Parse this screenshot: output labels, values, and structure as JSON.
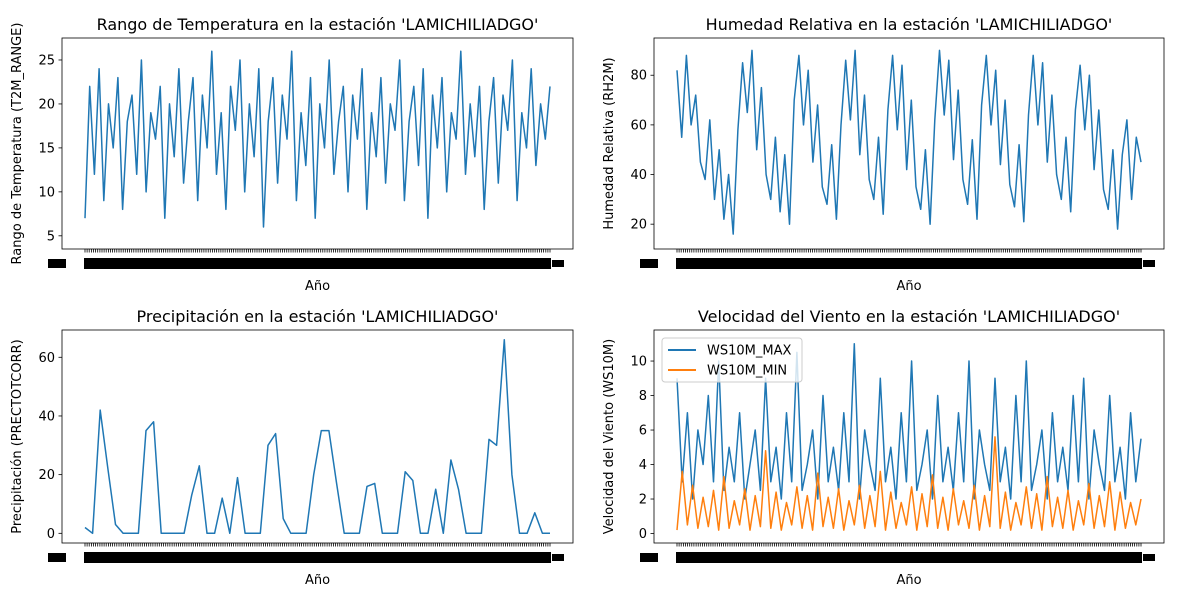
{
  "chart_data": [
    {
      "type": "line",
      "title": "Rango de Temperatura en la estación 'LAMICHILIADGO'",
      "xlabel": "Año",
      "ylabel": "Rango de Temperatura (T2M_RANGE)",
      "ylim": [
        3.5,
        27.5
      ],
      "yticks": [
        5,
        10,
        15,
        20,
        25
      ],
      "grid": false,
      "series": [
        {
          "color": "#1f77b4",
          "values": [
            7,
            22,
            12,
            24,
            9,
            20,
            15,
            23,
            8,
            18,
            21,
            12,
            25,
            10,
            19,
            16,
            22,
            7,
            20,
            14,
            24,
            11,
            18,
            23,
            9,
            21,
            15,
            26,
            12,
            19,
            8,
            22,
            17,
            25,
            10,
            20,
            14,
            24,
            6,
            18,
            23,
            11,
            21,
            16,
            26,
            9,
            19,
            13,
            23,
            7,
            20,
            15,
            25,
            12,
            18,
            22,
            10,
            21,
            16,
            24,
            8,
            19,
            14,
            23,
            11,
            20,
            17,
            25,
            9,
            18,
            22,
            13,
            24,
            7,
            21,
            15,
            23,
            10,
            19,
            16,
            26,
            12,
            20,
            14,
            22,
            8,
            18,
            23,
            11,
            21,
            17,
            25,
            9,
            19,
            15,
            24,
            13,
            20,
            16,
            22
          ]
        }
      ]
    },
    {
      "type": "line",
      "title": "Humedad Relativa en la estación 'LAMICHILIADGO'",
      "xlabel": "Año",
      "ylabel": "Humedad Relativa (RH2M)",
      "ylim": [
        10,
        95
      ],
      "yticks": [
        20,
        40,
        60,
        80
      ],
      "grid": false,
      "series": [
        {
          "color": "#1f77b4",
          "values": [
            82,
            55,
            88,
            60,
            72,
            45,
            38,
            62,
            30,
            50,
            22,
            40,
            16,
            58,
            85,
            65,
            90,
            50,
            75,
            40,
            30,
            55,
            25,
            48,
            20,
            70,
            88,
            60,
            82,
            45,
            68,
            35,
            28,
            52,
            22,
            60,
            86,
            62,
            90,
            48,
            72,
            38,
            30,
            55,
            24,
            66,
            88,
            58,
            84,
            42,
            70,
            35,
            26,
            50,
            20,
            62,
            90,
            64,
            86,
            46,
            74,
            38,
            28,
            54,
            22,
            68,
            88,
            60,
            82,
            44,
            70,
            36,
            27,
            52,
            21,
            64,
            88,
            60,
            85,
            45,
            72,
            40,
            30,
            55,
            25,
            66,
            84,
            58,
            80,
            42,
            66,
            34,
            26,
            50,
            18,
            48,
            62,
            30,
            55,
            45
          ]
        }
      ]
    },
    {
      "type": "line",
      "title": "Precipitación en la estación 'LAMICHILIADGO'",
      "xlabel": "Año",
      "ylabel": "Precipitación (PRECTOTCORR)",
      "ylim": [
        -3.3,
        69.3
      ],
      "yticks": [
        0,
        20,
        40,
        60
      ],
      "grid": false,
      "series": [
        {
          "color": "#1f77b4",
          "values": [
            2,
            0,
            42,
            22,
            3,
            0,
            0,
            0,
            35,
            38,
            0,
            0,
            0,
            0,
            13,
            23,
            0,
            0,
            12,
            0,
            19,
            0,
            0,
            0,
            30,
            34,
            5,
            0,
            0,
            0,
            20,
            35,
            35,
            17,
            0,
            0,
            0,
            16,
            17,
            0,
            0,
            0,
            21,
            18,
            0,
            0,
            15,
            0,
            25,
            15,
            0,
            0,
            0,
            32,
            30,
            66,
            20,
            0,
            0,
            7,
            0,
            0
          ]
        }
      ]
    },
    {
      "type": "line",
      "title": "Velocidad del Viento en la estación 'LAMICHILIADGO'",
      "xlabel": "Año",
      "ylabel": "Velocidad del Viento (WS10M)",
      "ylim": [
        -0.55,
        11.8
      ],
      "yticks": [
        0,
        2,
        4,
        6,
        8,
        10
      ],
      "grid": false,
      "legend_position": "upper-left",
      "series": [
        {
          "name": "WS10M_MAX",
          "color": "#1f77b4",
          "values": [
            9,
            3,
            7,
            2,
            6,
            4,
            8,
            3,
            10,
            2.5,
            5,
            3,
            7,
            2,
            4,
            6,
            2.5,
            9,
            3,
            5,
            2,
            7,
            3,
            10.5,
            2.5,
            4,
            6,
            2,
            8,
            3,
            5,
            2.5,
            7,
            3,
            11,
            2,
            6,
            4,
            2.5,
            9,
            3,
            5,
            2,
            7,
            3,
            10,
            2.5,
            4,
            6,
            2,
            8,
            3,
            5,
            2.5,
            7,
            3,
            10,
            2,
            6,
            4,
            2.5,
            9,
            3,
            5,
            2,
            8,
            3,
            10,
            2.5,
            4,
            6,
            2,
            7,
            3,
            5,
            2.5,
            8,
            3,
            9,
            2,
            6,
            4,
            2.5,
            8,
            3,
            5,
            2,
            7,
            3,
            5.5
          ]
        },
        {
          "name": "WS10M_MIN",
          "color": "#ff7f0e",
          "values": [
            0.2,
            3.6,
            0.5,
            2.8,
            0.3,
            2.1,
            0.4,
            2.5,
            0.2,
            3.3,
            0.3,
            1.9,
            0.5,
            2.6,
            0.2,
            2.2,
            0.4,
            4.8,
            0.3,
            2.4,
            0.2,
            1.8,
            0.5,
            2.7,
            0.3,
            2.2,
            0.2,
            3.5,
            0.4,
            2.1,
            0.3,
            2.6,
            0.2,
            1.9,
            0.5,
            2.8,
            0.3,
            2.2,
            0.4,
            3.6,
            0.2,
            2.4,
            0.3,
            1.8,
            0.5,
            2.7,
            0.2,
            2.3,
            0.4,
            3.4,
            0.3,
            2.1,
            0.2,
            2.6,
            0.5,
            1.9,
            0.3,
            2.8,
            0.2,
            2.2,
            0.4,
            5.6,
            0.3,
            2.4,
            0.2,
            1.8,
            0.5,
            2.7,
            0.3,
            2.3,
            0.2,
            3.3,
            0.4,
            2.1,
            0.3,
            2.5,
            0.2,
            1.9,
            0.5,
            2.9,
            0.3,
            2.2,
            0.4,
            3.0,
            0.2,
            2.4,
            0.3,
            1.8,
            0.5,
            2.0
          ]
        }
      ]
    }
  ]
}
